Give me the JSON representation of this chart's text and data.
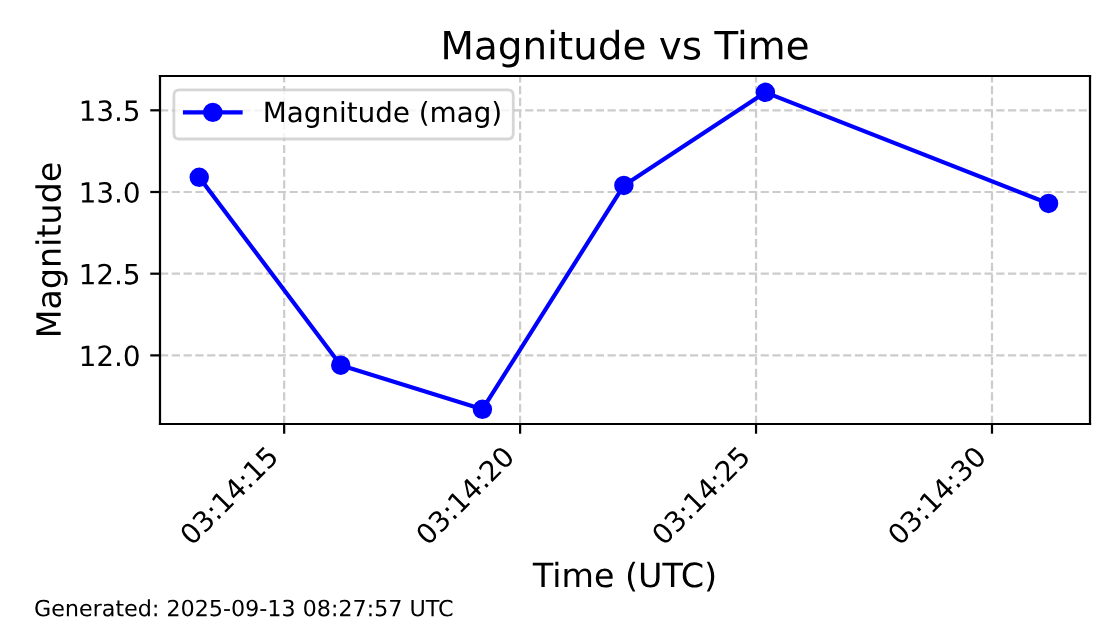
{
  "chart_data": {
    "type": "line",
    "title": "Magnitude vs Time",
    "xlabel": "Time (UTC)",
    "ylabel": "Magnitude",
    "x": [
      3.237,
      3.237833,
      3.238667,
      3.2395,
      3.240333,
      3.242
    ],
    "series": [
      {
        "name": "Magnitude (mag)",
        "color": "#0000ff",
        "values": [
          13.09,
          11.94,
          11.67,
          13.04,
          13.61,
          12.93
        ]
      }
    ],
    "xlim": [
      3.236769,
      3.242244
    ],
    "xticks": [
      {
        "value": 3.2375,
        "label": "03:14:15"
      },
      {
        "value": 3.238889,
        "label": "03:14:20"
      },
      {
        "value": 3.240278,
        "label": "03:14:25"
      },
      {
        "value": 3.241667,
        "label": "03:14:30"
      }
    ],
    "ylim": [
      11.58,
      13.71
    ],
    "yticks": [
      {
        "value": 12,
        "label": "12.0"
      },
      12.5,
      {
        "value": 13,
        "label": "13.0"
      },
      13.5
    ],
    "grid": true,
    "legend": "top left",
    "marker": "circle",
    "line_style": "solid",
    "annotations": [
      "Generated: 2025-09-13 08:27:57 UTC"
    ]
  }
}
